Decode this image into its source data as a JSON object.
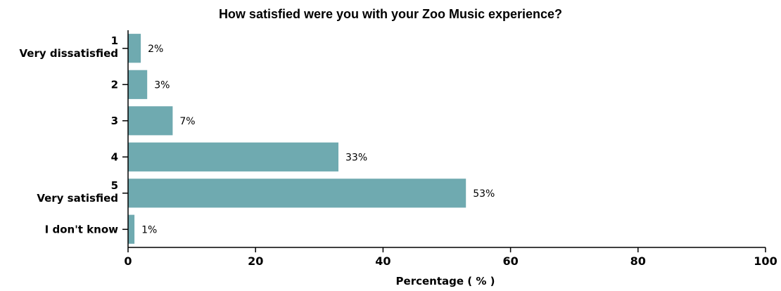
{
  "chart_data": {
    "type": "bar",
    "orientation": "horizontal",
    "title": "How satisfied were you with your Zoo Music experience?",
    "xlabel": "Percentage ( % )",
    "ylabel": "",
    "xlim": [
      0,
      100
    ],
    "xticks": [
      0,
      20,
      40,
      60,
      80,
      100
    ],
    "grid": false,
    "bar_color": "#6faab0",
    "categories": [
      {
        "line1": "1",
        "line2": "Very dissatisfied"
      },
      {
        "line1": "2",
        "line2": ""
      },
      {
        "line1": "3",
        "line2": ""
      },
      {
        "line1": "4",
        "line2": ""
      },
      {
        "line1": "5",
        "line2": "Very satisfied"
      },
      {
        "line1": "I don't know",
        "line2": ""
      }
    ],
    "values": [
      2,
      3,
      7,
      33,
      53,
      1
    ],
    "data_labels": [
      "2%",
      "3%",
      "7%",
      "33%",
      "53%",
      "1%"
    ]
  }
}
